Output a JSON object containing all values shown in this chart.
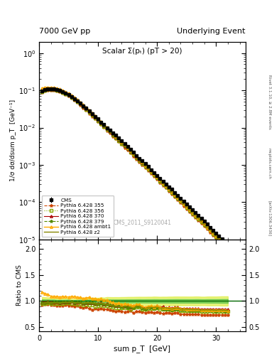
{
  "title_left": "7000 GeV pp",
  "title_right": "Underlying Event",
  "plot_title": "Scalar Σ(pₜ) (pT > 20)",
  "ylabel_main": "1/σ dσ/dsum p_T  [GeV⁻¹]",
  "ylabel_ratio": "Ratio to CMS",
  "xlabel": "sum p_T  [GeV]",
  "watermark": "CMS_2011_S9120041",
  "right_label1": "Rivet 3.1.10, ≥ 2.8M events",
  "right_label2": "mcplots.cern.ch",
  "right_label3": "[arXiv:1306.3436]",
  "cms_x": [
    0.5,
    1.0,
    1.5,
    2.0,
    2.5,
    3.0,
    3.5,
    4.0,
    4.5,
    5.0,
    5.5,
    6.0,
    6.5,
    7.0,
    7.5,
    8.0,
    8.5,
    9.0,
    9.5,
    10.0,
    10.5,
    11.0,
    11.5,
    12.0,
    12.5,
    13.0,
    13.5,
    14.0,
    14.5,
    15.0,
    15.5,
    16.0,
    16.5,
    17.0,
    17.5,
    18.0,
    18.5,
    19.0,
    19.5,
    20.0,
    20.5,
    21.0,
    21.5,
    22.0,
    22.5,
    23.0,
    23.5,
    24.0,
    24.5,
    25.0,
    25.5,
    26.0,
    26.5,
    27.0,
    27.5,
    28.0,
    28.5,
    29.0,
    29.5,
    30.0,
    30.5,
    31.0,
    31.5,
    32.0
  ],
  "cms_y": [
    0.098,
    0.105,
    0.108,
    0.11,
    0.108,
    0.105,
    0.1,
    0.093,
    0.085,
    0.077,
    0.068,
    0.06,
    0.052,
    0.045,
    0.039,
    0.033,
    0.028,
    0.024,
    0.02,
    0.017,
    0.014,
    0.012,
    0.01,
    0.0086,
    0.0073,
    0.0062,
    0.0052,
    0.0044,
    0.0037,
    0.0031,
    0.0026,
    0.0022,
    0.0018,
    0.0015,
    0.0013,
    0.0011,
    0.0009,
    0.00075,
    0.00063,
    0.00052,
    0.00044,
    0.00037,
    0.00031,
    0.00026,
    0.00022,
    0.00018,
    0.00015,
    0.000128,
    0.000107,
    8.95e-05,
    7.5e-05,
    6.28e-05,
    5.25e-05,
    4.39e-05,
    3.68e-05,
    3.08e-05,
    2.57e-05,
    2.14e-05,
    1.79e-05,
    1.5e-05,
    1.24e-05,
    1.04e-05,
    8.72e-06,
    7.29e-06
  ],
  "cms_yerr": [
    0.003,
    0.003,
    0.003,
    0.003,
    0.003,
    0.002,
    0.002,
    0.002,
    0.002,
    0.002,
    0.001,
    0.001,
    0.001,
    0.001,
    0.001,
    0.0008,
    0.0007,
    0.0006,
    0.0005,
    0.0004,
    0.0004,
    0.0003,
    0.0003,
    0.00025,
    0.00021,
    0.00018,
    0.00015,
    0.00013,
    0.00011,
    9.5e-05,
    8e-05,
    6.8e-05,
    5.7e-05,
    4.8e-05,
    4.1e-05,
    3.5e-05,
    2.9e-05,
    2.4e-05,
    2.1e-05,
    1.7e-05,
    1.4e-05,
    1.2e-05,
    1e-05,
    8.6e-06,
    7.3e-06,
    6.1e-06,
    5.1e-06,
    4.3e-06,
    3.6e-06,
    3e-06,
    2.5e-06,
    2.1e-06,
    1.8e-06,
    1.5e-06,
    1.2e-06,
    1e-06,
    8.7e-07,
    7.3e-07,
    6.1e-07,
    5.1e-07,
    4.3e-07,
    3.7e-07,
    3.1e-07,
    2.6e-07
  ],
  "p355_y": [
    0.09,
    0.098,
    0.101,
    0.101,
    0.099,
    0.096,
    0.091,
    0.085,
    0.078,
    0.07,
    0.062,
    0.054,
    0.047,
    0.04,
    0.034,
    0.029,
    0.024,
    0.02,
    0.017,
    0.0144,
    0.012,
    0.0101,
    0.0084,
    0.0071,
    0.0059,
    0.005,
    0.0042,
    0.0035,
    0.0029,
    0.0025,
    0.0021,
    0.0017,
    0.00145,
    0.00121,
    0.00102,
    0.00085,
    0.00071,
    0.00059,
    0.00049,
    0.00041,
    0.00034,
    0.00028,
    0.00024,
    0.0002,
    0.000166,
    0.000138,
    0.000115,
    9.6e-05,
    8e-05,
    6.68e-05,
    5.58e-05,
    4.66e-05,
    3.89e-05,
    3.25e-05,
    2.71e-05,
    2.26e-05,
    1.89e-05,
    1.57e-05,
    1.31e-05,
    1.1e-05,
    9.14e-06,
    7.62e-06,
    6.35e-06,
    5.3e-06
  ],
  "p356_y": [
    0.093,
    0.1,
    0.104,
    0.104,
    0.103,
    0.1,
    0.095,
    0.089,
    0.082,
    0.074,
    0.065,
    0.057,
    0.049,
    0.043,
    0.036,
    0.031,
    0.026,
    0.022,
    0.018,
    0.0155,
    0.013,
    0.0109,
    0.0091,
    0.0077,
    0.0064,
    0.0054,
    0.0045,
    0.0038,
    0.0032,
    0.0027,
    0.0022,
    0.0019,
    0.00158,
    0.00132,
    0.0011,
    0.00092,
    0.00077,
    0.00064,
    0.00054,
    0.00045,
    0.00037,
    0.00031,
    0.00026,
    0.000218,
    0.000181,
    0.000151,
    0.000126,
    0.000105,
    8.77e-05,
    7.32e-05,
    6.11e-05,
    5.1e-05,
    4.26e-05,
    3.56e-05,
    2.97e-05,
    2.48e-05,
    2.07e-05,
    1.73e-05,
    1.44e-05,
    1.2e-05,
    1e-05,
    8.38e-06,
    6.99e-06,
    5.84e-06
  ],
  "p370_y": [
    0.096,
    0.103,
    0.107,
    0.107,
    0.106,
    0.103,
    0.097,
    0.091,
    0.083,
    0.075,
    0.067,
    0.058,
    0.051,
    0.044,
    0.037,
    0.032,
    0.027,
    0.023,
    0.019,
    0.0161,
    0.0135,
    0.0113,
    0.0095,
    0.008,
    0.0067,
    0.0056,
    0.0047,
    0.004,
    0.0033,
    0.0028,
    0.0023,
    0.002,
    0.00165,
    0.00138,
    0.00115,
    0.00096,
    0.0008,
    0.00067,
    0.00056,
    0.00047,
    0.00039,
    0.00033,
    0.00027,
    0.000228,
    0.00019,
    0.000158,
    0.000132,
    0.00011,
    9.2e-05,
    7.68e-05,
    6.41e-05,
    5.35e-05,
    4.47e-05,
    3.73e-05,
    3.11e-05,
    2.6e-05,
    2.17e-05,
    1.81e-05,
    1.51e-05,
    1.26e-05,
    1.05e-05,
    8.79e-06,
    7.33e-06,
    6.12e-06
  ],
  "p379_y": [
    0.094,
    0.101,
    0.105,
    0.106,
    0.105,
    0.102,
    0.097,
    0.091,
    0.083,
    0.075,
    0.067,
    0.058,
    0.051,
    0.044,
    0.037,
    0.032,
    0.027,
    0.023,
    0.019,
    0.016,
    0.0134,
    0.0113,
    0.0094,
    0.0079,
    0.0066,
    0.0056,
    0.0047,
    0.0039,
    0.0033,
    0.0027,
    0.0023,
    0.0019,
    0.00161,
    0.00134,
    0.00112,
    0.00093,
    0.00078,
    0.00065,
    0.00054,
    0.00045,
    0.00038,
    0.00031,
    0.00026,
    0.000218,
    0.000182,
    0.000152,
    0.000126,
    0.000106,
    8.82e-05,
    7.36e-05,
    6.14e-05,
    5.13e-05,
    4.28e-05,
    3.57e-05,
    2.98e-05,
    2.49e-05,
    2.08e-05,
    1.73e-05,
    1.45e-05,
    1.21e-05,
    1.01e-05,
    8.42e-06,
    7.03e-06,
    5.87e-06
  ],
  "pambt1_y": [
    0.115,
    0.12,
    0.122,
    0.12,
    0.118,
    0.114,
    0.108,
    0.101,
    0.092,
    0.083,
    0.074,
    0.065,
    0.056,
    0.048,
    0.041,
    0.035,
    0.03,
    0.025,
    0.021,
    0.0175,
    0.0146,
    0.0122,
    0.0102,
    0.0085,
    0.0071,
    0.0059,
    0.005,
    0.0041,
    0.0035,
    0.0029,
    0.0024,
    0.002,
    0.00168,
    0.0014,
    0.00117,
    0.00097,
    0.00081,
    0.00068,
    0.00056,
    0.00047,
    0.00039,
    0.00032,
    0.00027,
    0.000226,
    0.000188,
    0.000157,
    0.000131,
    0.000109,
    9.1e-05,
    7.59e-05,
    6.34e-05,
    5.29e-05,
    4.41e-05,
    3.68e-05,
    3.07e-05,
    2.56e-05,
    2.13e-05,
    1.78e-05,
    1.48e-05,
    1.24e-05,
    1.03e-05,
    8.59e-06,
    7.17e-06,
    5.98e-06
  ],
  "pz2_y": [
    0.093,
    0.101,
    0.105,
    0.106,
    0.104,
    0.101,
    0.096,
    0.09,
    0.083,
    0.075,
    0.066,
    0.058,
    0.05,
    0.043,
    0.037,
    0.032,
    0.027,
    0.023,
    0.019,
    0.016,
    0.0134,
    0.0113,
    0.0094,
    0.0079,
    0.0066,
    0.0056,
    0.0047,
    0.0039,
    0.0033,
    0.0028,
    0.0023,
    0.0019,
    0.00162,
    0.00135,
    0.00113,
    0.00094,
    0.00079,
    0.00066,
    0.00055,
    0.00046,
    0.00038,
    0.00032,
    0.00027,
    0.000223,
    0.000186,
    0.000155,
    0.00013,
    0.000108,
    9.02e-05,
    7.53e-05,
    6.28e-05,
    5.25e-05,
    4.38e-05,
    3.66e-05,
    3.05e-05,
    2.55e-05,
    2.13e-05,
    1.77e-05,
    1.48e-05,
    1.23e-05,
    1.03e-05,
    8.58e-06,
    7.16e-06,
    5.97e-06
  ],
  "cms_color": "#000000",
  "p355_color": "#cc4400",
  "p356_color": "#88aa00",
  "p370_color": "#aa0000",
  "p379_color": "#558800",
  "pambt1_color": "#ffaa00",
  "pz2_color": "#888800",
  "xlim": [
    0,
    35
  ],
  "ylim_main": [
    1e-05,
    2.0
  ],
  "ylim_ratio": [
    0.42,
    2.18
  ],
  "ratio_yticks": [
    0.5,
    1.0,
    1.5,
    2.0
  ]
}
